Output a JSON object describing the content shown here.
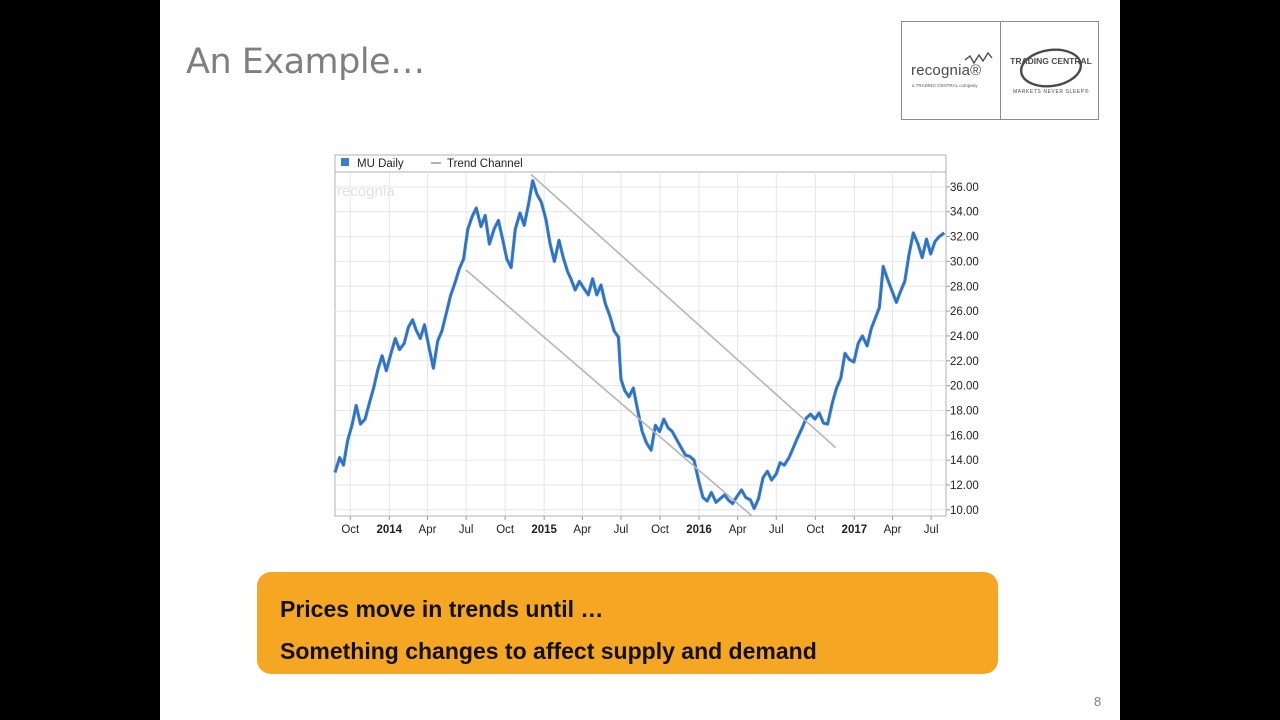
{
  "slide": {
    "title": "An Example…",
    "page_number": "8"
  },
  "logos": {
    "recognia_wordmark": "recognia®",
    "recognia_subtitle": "a TRADING CENTRAL company",
    "trading_central_wordmark": "TRADING CENTRAL",
    "trading_central_tagline": "MARKETS NEVER SLEEP®"
  },
  "callout": {
    "line1": "Prices move in trends until …",
    "line2": "Something changes to affect supply and demand"
  },
  "colors": {
    "series": "#3a7fd0",
    "trend_channel": "#b5b5b5",
    "callout_bg": "#f5a623",
    "grid": "#e6e6e6"
  },
  "chart_data": {
    "type": "line",
    "title": "",
    "xlabel": "",
    "ylabel": "",
    "watermark": "recognia",
    "legend_position": "top-left",
    "legend": [
      "MU Daily",
      "Trend Channel"
    ],
    "grid": true,
    "ylim": [
      9.5,
      37.2
    ],
    "xlim": [
      "2013-08-26",
      "2017-08-05"
    ],
    "y_ticks": [
      "10.00",
      "12.00",
      "14.00",
      "16.00",
      "18.00",
      "20.00",
      "22.00",
      "24.00",
      "26.00",
      "28.00",
      "30.00",
      "32.00",
      "34.00",
      "36.00"
    ],
    "x_ticks": [
      {
        "label": "Oct",
        "date": "2013-10-01",
        "bold": false
      },
      {
        "label": "2014",
        "date": "2014-01-01",
        "bold": true
      },
      {
        "label": "Apr",
        "date": "2014-04-01",
        "bold": false
      },
      {
        "label": "Jul",
        "date": "2014-07-01",
        "bold": false
      },
      {
        "label": "Oct",
        "date": "2014-10-01",
        "bold": false
      },
      {
        "label": "2015",
        "date": "2015-01-01",
        "bold": true
      },
      {
        "label": "Apr",
        "date": "2015-04-01",
        "bold": false
      },
      {
        "label": "Jul",
        "date": "2015-07-01",
        "bold": false
      },
      {
        "label": "Oct",
        "date": "2015-10-01",
        "bold": false
      },
      {
        "label": "2016",
        "date": "2016-01-01",
        "bold": true
      },
      {
        "label": "Apr",
        "date": "2016-04-01",
        "bold": false
      },
      {
        "label": "Jul",
        "date": "2016-07-01",
        "bold": false
      },
      {
        "label": "Oct",
        "date": "2016-10-01",
        "bold": false
      },
      {
        "label": "2017",
        "date": "2017-01-01",
        "bold": true
      },
      {
        "label": "Apr",
        "date": "2017-04-01",
        "bold": false
      },
      {
        "label": "Jul",
        "date": "2017-07-01",
        "bold": false
      }
    ],
    "series": [
      {
        "name": "MU Daily",
        "points": [
          [
            "2013-08-26",
            13.0
          ],
          [
            "2013-09-06",
            14.2
          ],
          [
            "2013-09-15",
            13.6
          ],
          [
            "2013-09-25",
            15.6
          ],
          [
            "2013-10-05",
            16.8
          ],
          [
            "2013-10-15",
            18.4
          ],
          [
            "2013-10-25",
            16.9
          ],
          [
            "2013-11-05",
            17.3
          ],
          [
            "2013-11-15",
            18.6
          ],
          [
            "2013-11-25",
            19.8
          ],
          [
            "2013-12-05",
            21.3
          ],
          [
            "2013-12-15",
            22.4
          ],
          [
            "2013-12-25",
            21.2
          ],
          [
            "2014-01-05",
            22.6
          ],
          [
            "2014-01-15",
            23.8
          ],
          [
            "2014-01-25",
            22.9
          ],
          [
            "2014-02-05",
            23.4
          ],
          [
            "2014-02-15",
            24.7
          ],
          [
            "2014-02-25",
            25.3
          ],
          [
            "2014-03-05",
            24.5
          ],
          [
            "2014-03-15",
            23.8
          ],
          [
            "2014-03-25",
            24.9
          ],
          [
            "2014-04-05",
            23.0
          ],
          [
            "2014-04-15",
            21.4
          ],
          [
            "2014-04-25",
            23.6
          ],
          [
            "2014-05-05",
            24.4
          ],
          [
            "2014-05-15",
            25.8
          ],
          [
            "2014-05-25",
            27.2
          ],
          [
            "2014-06-05",
            28.3
          ],
          [
            "2014-06-15",
            29.4
          ],
          [
            "2014-06-25",
            30.2
          ],
          [
            "2014-07-05",
            32.6
          ],
          [
            "2014-07-15",
            33.6
          ],
          [
            "2014-07-25",
            34.3
          ],
          [
            "2014-08-05",
            32.8
          ],
          [
            "2014-08-15",
            33.7
          ],
          [
            "2014-08-25",
            31.4
          ],
          [
            "2014-09-05",
            32.6
          ],
          [
            "2014-09-15",
            33.3
          ],
          [
            "2014-09-25",
            31.8
          ],
          [
            "2014-10-05",
            30.2
          ],
          [
            "2014-10-15",
            29.5
          ],
          [
            "2014-10-25",
            32.6
          ],
          [
            "2014-11-05",
            33.9
          ],
          [
            "2014-11-15",
            32.9
          ],
          [
            "2014-11-25",
            34.6
          ],
          [
            "2014-12-05",
            36.5
          ],
          [
            "2014-12-15",
            35.4
          ],
          [
            "2014-12-25",
            34.8
          ],
          [
            "2015-01-05",
            33.4
          ],
          [
            "2015-01-15",
            31.4
          ],
          [
            "2015-01-25",
            30.0
          ],
          [
            "2015-02-05",
            31.7
          ],
          [
            "2015-02-15",
            30.3
          ],
          [
            "2015-02-25",
            29.2
          ],
          [
            "2015-03-05",
            28.6
          ],
          [
            "2015-03-15",
            27.7
          ],
          [
            "2015-03-25",
            28.4
          ],
          [
            "2015-04-05",
            27.8
          ],
          [
            "2015-04-15",
            27.3
          ],
          [
            "2015-04-25",
            28.6
          ],
          [
            "2015-05-05",
            27.3
          ],
          [
            "2015-05-15",
            28.1
          ],
          [
            "2015-05-25",
            26.6
          ],
          [
            "2015-06-05",
            25.6
          ],
          [
            "2015-06-15",
            24.4
          ],
          [
            "2015-06-25",
            23.9
          ],
          [
            "2015-07-01",
            20.5
          ],
          [
            "2015-07-10",
            19.6
          ],
          [
            "2015-07-20",
            19.1
          ],
          [
            "2015-07-30",
            19.8
          ],
          [
            "2015-08-10",
            17.9
          ],
          [
            "2015-08-20",
            16.3
          ],
          [
            "2015-08-30",
            15.4
          ],
          [
            "2015-09-10",
            14.8
          ],
          [
            "2015-09-20",
            16.8
          ],
          [
            "2015-09-30",
            16.3
          ],
          [
            "2015-10-10",
            17.3
          ],
          [
            "2015-10-20",
            16.6
          ],
          [
            "2015-10-30",
            16.3
          ],
          [
            "2015-11-10",
            15.6
          ],
          [
            "2015-11-20",
            15.0
          ],
          [
            "2015-11-30",
            14.4
          ],
          [
            "2015-12-10",
            14.3
          ],
          [
            "2015-12-20",
            14.0
          ],
          [
            "2016-01-01",
            12.2
          ],
          [
            "2016-01-10",
            11.0
          ],
          [
            "2016-01-20",
            10.7
          ],
          [
            "2016-01-30",
            11.4
          ],
          [
            "2016-02-10",
            10.6
          ],
          [
            "2016-02-20",
            10.9
          ],
          [
            "2016-03-01",
            11.2
          ],
          [
            "2016-03-10",
            10.8
          ],
          [
            "2016-03-20",
            10.5
          ],
          [
            "2016-03-31",
            11.1
          ],
          [
            "2016-04-10",
            11.6
          ],
          [
            "2016-04-20",
            11.0
          ],
          [
            "2016-05-01",
            10.8
          ],
          [
            "2016-05-10",
            10.1
          ],
          [
            "2016-05-20",
            10.9
          ],
          [
            "2016-05-31",
            12.6
          ],
          [
            "2016-06-10",
            13.1
          ],
          [
            "2016-06-20",
            12.4
          ],
          [
            "2016-07-01",
            12.9
          ],
          [
            "2016-07-10",
            13.8
          ],
          [
            "2016-07-20",
            13.6
          ],
          [
            "2016-07-31",
            14.2
          ],
          [
            "2016-08-10",
            15.0
          ],
          [
            "2016-08-20",
            15.8
          ],
          [
            "2016-08-31",
            16.6
          ],
          [
            "2016-09-10",
            17.4
          ],
          [
            "2016-09-20",
            17.7
          ],
          [
            "2016-09-30",
            17.3
          ],
          [
            "2016-10-10",
            17.8
          ],
          [
            "2016-10-20",
            17.0
          ],
          [
            "2016-10-30",
            16.9
          ],
          [
            "2016-11-10",
            18.6
          ],
          [
            "2016-11-20",
            19.8
          ],
          [
            "2016-11-30",
            20.6
          ],
          [
            "2016-12-10",
            22.6
          ],
          [
            "2016-12-20",
            22.1
          ],
          [
            "2016-12-31",
            21.9
          ],
          [
            "2017-01-10",
            23.4
          ],
          [
            "2017-01-20",
            24.0
          ],
          [
            "2017-01-31",
            23.2
          ],
          [
            "2017-02-10",
            24.6
          ],
          [
            "2017-02-20",
            25.5
          ],
          [
            "2017-03-01",
            26.3
          ],
          [
            "2017-03-10",
            29.6
          ],
          [
            "2017-03-20",
            28.6
          ],
          [
            "2017-03-31",
            27.6
          ],
          [
            "2017-04-10",
            26.7
          ],
          [
            "2017-04-20",
            27.6
          ],
          [
            "2017-04-30",
            28.4
          ],
          [
            "2017-05-10",
            30.6
          ],
          [
            "2017-05-20",
            32.3
          ],
          [
            "2017-05-31",
            31.4
          ],
          [
            "2017-06-10",
            30.3
          ],
          [
            "2017-06-20",
            31.8
          ],
          [
            "2017-06-30",
            30.6
          ],
          [
            "2017-07-10",
            31.6
          ],
          [
            "2017-07-20",
            32.0
          ],
          [
            "2017-08-01",
            32.3
          ]
        ]
      },
      {
        "name": "Trend Channel",
        "lines": [
          {
            "start": [
              "2014-12-01",
              37.0
            ],
            "end": [
              "2016-11-18",
              15.0
            ]
          },
          {
            "start": [
              "2014-07-01",
              29.3
            ],
            "end": [
              "2016-05-05",
              9.5
            ]
          }
        ]
      }
    ]
  }
}
